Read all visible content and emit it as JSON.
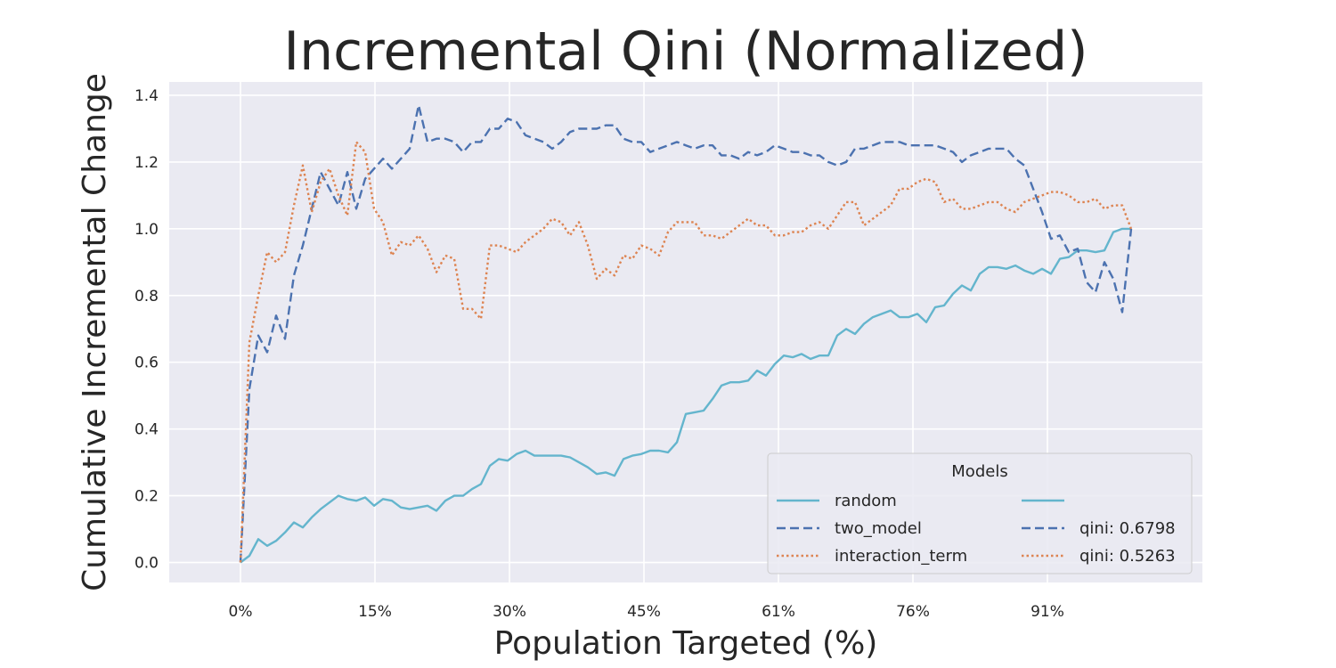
{
  "chart_data": {
    "type": "line",
    "title": "Incremental Qini (Normalized)",
    "xlabel": "Population Targeted (%)",
    "ylabel": "Cumulative Incremental Change",
    "xlim": [
      -8,
      108
    ],
    "ylim": [
      -0.06,
      1.44
    ],
    "xticks": [
      0,
      15.1,
      30.2,
      45.3,
      60.4,
      75.5,
      90.6
    ],
    "xtick_labels": [
      "0%",
      "15%",
      "30%",
      "45%",
      "61%",
      "76%",
      "91%"
    ],
    "yticks": [
      0.0,
      0.2,
      0.4,
      0.6,
      0.8,
      1.0,
      1.2,
      1.4
    ],
    "ytick_labels": [
      "0.0",
      "0.2",
      "0.4",
      "0.6",
      "0.8",
      "1.0",
      "1.2",
      "1.4"
    ],
    "grid": true,
    "background": "#eaeaf2",
    "legend": {
      "title": "Models",
      "placement": "lower-right",
      "columns": [
        [
          {
            "label": "random",
            "color": "#64b5cd",
            "dash": "solid"
          },
          {
            "label": "two_model",
            "color": "#4c72b0",
            "dash": "dashed"
          },
          {
            "label": "interaction_term",
            "color": "#dd8452",
            "dash": "dotted"
          }
        ],
        [
          {
            "label": "",
            "color": "#64b5cd",
            "dash": "solid"
          },
          {
            "label": "qini: 0.6798",
            "color": "#4c72b0",
            "dash": "dashed"
          },
          {
            "label": "qini: 0.5263",
            "color": "#dd8452",
            "dash": "dotted"
          }
        ]
      ]
    },
    "series": [
      {
        "name": "random",
        "color": "#64b5cd",
        "dash": "solid",
        "x": [
          0,
          1,
          2,
          3,
          4,
          5,
          6,
          7,
          8,
          9,
          10,
          11,
          12,
          13,
          14,
          15,
          16,
          17,
          18,
          19,
          20,
          21,
          22,
          23,
          24,
          25,
          26,
          27,
          28,
          29,
          30,
          31,
          32,
          33,
          34,
          35,
          36,
          37,
          38,
          39,
          40,
          41,
          42,
          43,
          44,
          45,
          46,
          47,
          48,
          49,
          50,
          51,
          52,
          53,
          54,
          55,
          56,
          57,
          58,
          59,
          60,
          61,
          62,
          63,
          64,
          65,
          66,
          67,
          68,
          69,
          70,
          71,
          72,
          73,
          74,
          75,
          76,
          77,
          78,
          79,
          80,
          81,
          82,
          83,
          84,
          85,
          86,
          87,
          88,
          89,
          90,
          91,
          92,
          93,
          94,
          95,
          96,
          97,
          98,
          99,
          100
        ],
        "values": [
          0.0,
          0.02,
          0.07,
          0.05,
          0.065,
          0.09,
          0.12,
          0.105,
          0.135,
          0.16,
          0.18,
          0.2,
          0.19,
          0.185,
          0.195,
          0.17,
          0.19,
          0.185,
          0.165,
          0.16,
          0.165,
          0.17,
          0.155,
          0.185,
          0.2,
          0.2,
          0.22,
          0.235,
          0.29,
          0.31,
          0.305,
          0.325,
          0.335,
          0.32,
          0.32,
          0.32,
          0.32,
          0.315,
          0.3,
          0.285,
          0.265,
          0.27,
          0.26,
          0.31,
          0.32,
          0.325,
          0.335,
          0.335,
          0.33,
          0.36,
          0.445,
          0.45,
          0.455,
          0.49,
          0.53,
          0.54,
          0.54,
          0.545,
          0.575,
          0.56,
          0.595,
          0.62,
          0.615,
          0.625,
          0.61,
          0.62,
          0.62,
          0.68,
          0.7,
          0.685,
          0.715,
          0.735,
          0.745,
          0.755,
          0.735,
          0.735,
          0.745,
          0.72,
          0.765,
          0.77,
          0.805,
          0.83,
          0.815,
          0.865,
          0.885,
          0.885,
          0.88,
          0.89,
          0.875,
          0.865,
          0.88,
          0.865,
          0.91,
          0.915,
          0.935,
          0.935,
          0.93,
          0.935,
          0.99,
          1.0,
          1.0
        ]
      },
      {
        "name": "two_model",
        "color": "#4c72b0",
        "dash": "dashed",
        "x": [
          0,
          1,
          2,
          3,
          4,
          5,
          6,
          7,
          8,
          9,
          10,
          11,
          12,
          13,
          14,
          15,
          16,
          17,
          18,
          19,
          20,
          21,
          22,
          23,
          24,
          25,
          26,
          27,
          28,
          29,
          30,
          31,
          32,
          33,
          34,
          35,
          36,
          37,
          38,
          39,
          40,
          41,
          42,
          43,
          44,
          45,
          46,
          47,
          48,
          49,
          50,
          51,
          52,
          53,
          54,
          55,
          56,
          57,
          58,
          59,
          60,
          61,
          62,
          63,
          64,
          65,
          66,
          67,
          68,
          69,
          70,
          71,
          72,
          73,
          74,
          75,
          76,
          77,
          78,
          79,
          80,
          81,
          82,
          83,
          84,
          85,
          86,
          87,
          88,
          89,
          90,
          91,
          92,
          93,
          94,
          95,
          96,
          97,
          98,
          99,
          100
        ],
        "values": [
          0.0,
          0.52,
          0.68,
          0.63,
          0.74,
          0.67,
          0.86,
          0.95,
          1.06,
          1.17,
          1.12,
          1.07,
          1.17,
          1.06,
          1.15,
          1.18,
          1.21,
          1.18,
          1.21,
          1.24,
          1.37,
          1.26,
          1.27,
          1.27,
          1.26,
          1.23,
          1.26,
          1.26,
          1.3,
          1.3,
          1.33,
          1.32,
          1.28,
          1.27,
          1.26,
          1.24,
          1.26,
          1.29,
          1.3,
          1.3,
          1.3,
          1.31,
          1.31,
          1.27,
          1.26,
          1.26,
          1.23,
          1.24,
          1.25,
          1.26,
          1.25,
          1.24,
          1.25,
          1.25,
          1.22,
          1.22,
          1.21,
          1.23,
          1.22,
          1.23,
          1.25,
          1.24,
          1.23,
          1.23,
          1.22,
          1.22,
          1.2,
          1.19,
          1.2,
          1.24,
          1.24,
          1.25,
          1.26,
          1.26,
          1.26,
          1.25,
          1.25,
          1.25,
          1.25,
          1.24,
          1.23,
          1.2,
          1.22,
          1.23,
          1.24,
          1.24,
          1.24,
          1.21,
          1.19,
          1.12,
          1.05,
          0.97,
          0.98,
          0.93,
          0.94,
          0.84,
          0.81,
          0.9,
          0.85,
          0.75,
          1.0
        ]
      },
      {
        "name": "interaction_term",
        "color": "#dd8452",
        "dash": "dotted",
        "x": [
          0,
          1,
          2,
          3,
          4,
          5,
          6,
          7,
          8,
          9,
          10,
          11,
          12,
          13,
          14,
          15,
          16,
          17,
          18,
          19,
          20,
          21,
          22,
          23,
          24,
          25,
          26,
          27,
          28,
          29,
          30,
          31,
          32,
          33,
          34,
          35,
          36,
          37,
          38,
          39,
          40,
          41,
          42,
          43,
          44,
          45,
          46,
          47,
          48,
          49,
          50,
          51,
          52,
          53,
          54,
          55,
          56,
          57,
          58,
          59,
          60,
          61,
          62,
          63,
          64,
          65,
          66,
          67,
          68,
          69,
          70,
          71,
          72,
          73,
          74,
          75,
          76,
          77,
          78,
          79,
          80,
          81,
          82,
          83,
          84,
          85,
          86,
          87,
          88,
          89,
          90,
          91,
          92,
          93,
          94,
          95,
          96,
          97,
          98,
          99,
          100
        ],
        "values": [
          0.0,
          0.66,
          0.8,
          0.93,
          0.9,
          0.93,
          1.07,
          1.19,
          1.05,
          1.14,
          1.18,
          1.1,
          1.04,
          1.26,
          1.23,
          1.06,
          1.02,
          0.92,
          0.96,
          0.95,
          0.98,
          0.94,
          0.87,
          0.92,
          0.91,
          0.76,
          0.76,
          0.73,
          0.95,
          0.95,
          0.94,
          0.93,
          0.96,
          0.98,
          1.0,
          1.03,
          1.02,
          0.98,
          1.02,
          0.95,
          0.85,
          0.88,
          0.86,
          0.92,
          0.91,
          0.95,
          0.94,
          0.92,
          0.99,
          1.02,
          1.02,
          1.02,
          0.98,
          0.98,
          0.97,
          0.99,
          1.01,
          1.03,
          1.01,
          1.01,
          0.98,
          0.98,
          0.99,
          0.99,
          1.01,
          1.02,
          1.0,
          1.04,
          1.08,
          1.08,
          1.01,
          1.03,
          1.05,
          1.07,
          1.12,
          1.12,
          1.14,
          1.15,
          1.14,
          1.08,
          1.09,
          1.06,
          1.06,
          1.07,
          1.08,
          1.08,
          1.06,
          1.05,
          1.08,
          1.09,
          1.1,
          1.11,
          1.11,
          1.1,
          1.08,
          1.08,
          1.09,
          1.06,
          1.07,
          1.07,
          1.0
        ]
      }
    ]
  }
}
